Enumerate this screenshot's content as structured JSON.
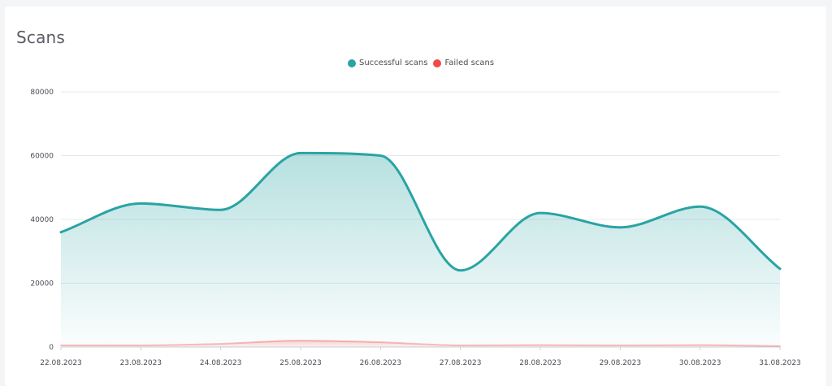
{
  "card": {
    "title": "Scans"
  },
  "colors": {
    "successful": "#2aa3a3",
    "failed": "#f04a4a",
    "grid": "#e8e8ec",
    "axis": "#cfcfd6"
  },
  "chart_data": {
    "type": "area",
    "title": "Scans",
    "x": [
      "22.08.2023",
      "23.08.2023",
      "24.08.2023",
      "25.08.2023",
      "26.08.2023",
      "27.08.2023",
      "28.08.2023",
      "29.08.2023",
      "30.08.2023",
      "31.08.2023"
    ],
    "yticks": [
      "0",
      "20000",
      "40000",
      "60000",
      "80000"
    ],
    "ylim": [
      0,
      80000
    ],
    "grid": true,
    "legend": "top-center",
    "series": [
      {
        "name": "Successful scans",
        "color": "#2aa3a3",
        "values": [
          36000,
          45000,
          43000,
          60800,
          60000,
          24000,
          42000,
          37500,
          44000,
          24500
        ]
      },
      {
        "name": "Failed scans",
        "color": "#f04a4a",
        "values": [
          500,
          500,
          1000,
          2000,
          1500,
          500,
          600,
          500,
          600,
          300
        ]
      }
    ]
  }
}
